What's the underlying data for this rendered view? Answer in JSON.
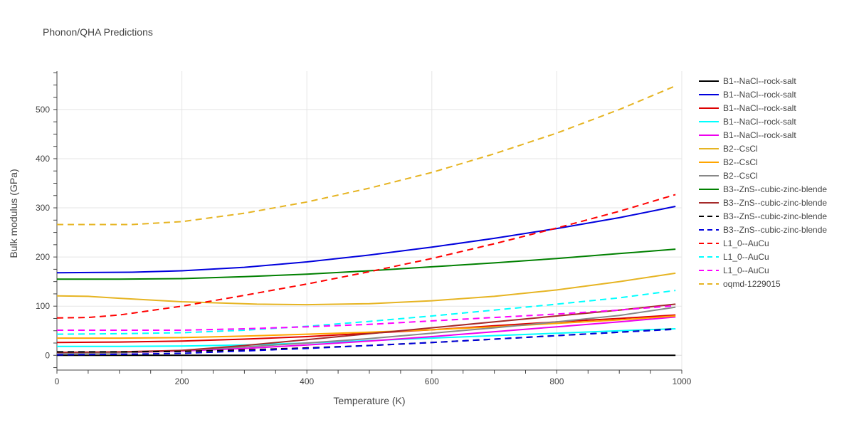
{
  "chart_data": {
    "type": "line",
    "title": "Phonon/QHA Predictions",
    "xlabel": "Temperature (K)",
    "ylabel": "Bulk modulus (GPa)",
    "xlim": [
      0,
      1000
    ],
    "ylim": [
      -30,
      578
    ],
    "xticks": [
      0,
      200,
      400,
      600,
      800,
      1000
    ],
    "yticks": [
      0,
      100,
      200,
      300,
      400,
      500
    ],
    "grid": true,
    "legend_position": "right",
    "series": [
      {
        "name": "B1--NaCl--rock-salt",
        "color": "#000000",
        "dash": "solid",
        "x": [
          0,
          200,
          400,
          600,
          800,
          990
        ],
        "y": [
          0,
          0,
          0,
          0,
          0,
          0
        ]
      },
      {
        "name": "B1--NaCl--rock-salt",
        "color": "#0000dd",
        "dash": "solid",
        "x": [
          0,
          120,
          200,
          300,
          400,
          500,
          600,
          700,
          800,
          900,
          990
        ],
        "y": [
          168,
          169,
          172,
          179,
          190,
          204,
          220,
          238,
          258,
          280,
          303
        ]
      },
      {
        "name": "B1--NaCl--rock-salt",
        "color": "#dd0000",
        "dash": "solid",
        "x": [
          0,
          100,
          200,
          300,
          400,
          500,
          600,
          700,
          800,
          900,
          990
        ],
        "y": [
          26,
          27,
          29,
          33,
          38,
          45,
          52,
          60,
          68,
          75,
          82
        ]
      },
      {
        "name": "B1--NaCl--rock-salt",
        "color": "#00ffff",
        "dash": "solid",
        "x": [
          0,
          100,
          200,
          300,
          400,
          500,
          600,
          700,
          800,
          900,
          990
        ],
        "y": [
          18,
          18,
          19,
          21,
          25,
          30,
          35,
          40,
          45,
          50,
          54
        ]
      },
      {
        "name": "B1--NaCl--rock-salt",
        "color": "#ee00ee",
        "dash": "solid",
        "x": [
          0,
          100,
          200,
          300,
          400,
          500,
          600,
          700,
          800,
          900,
          990
        ],
        "y": [
          3,
          5,
          9,
          14,
          21,
          29,
          38,
          48,
          58,
          68,
          78
        ]
      },
      {
        "name": "B2--CsCl",
        "color": "#e6b422",
        "dash": "solid",
        "x": [
          0,
          50,
          100,
          200,
          320,
          400,
          500,
          600,
          700,
          800,
          900,
          990
        ],
        "y": [
          121,
          120,
          116,
          109,
          104,
          103,
          105,
          111,
          120,
          133,
          150,
          167
        ]
      },
      {
        "name": "B2--CsCl",
        "color": "#ffa500",
        "dash": "solid",
        "x": [
          0,
          100,
          200,
          300,
          400,
          500,
          600,
          700,
          800,
          900,
          990
        ],
        "y": [
          35,
          35,
          36,
          39,
          43,
          47,
          52,
          58,
          65,
          72,
          80
        ]
      },
      {
        "name": "B2--CsCl",
        "color": "#888888",
        "dash": "solid",
        "x": [
          0,
          100,
          200,
          300,
          400,
          500,
          600,
          700,
          800,
          900,
          990
        ],
        "y": [
          3,
          5,
          10,
          17,
          25,
          34,
          45,
          56,
          68,
          81,
          98
        ]
      },
      {
        "name": "B3--ZnS--cubic-zinc-blende",
        "color": "#008000",
        "dash": "solid",
        "x": [
          0,
          100,
          200,
          300,
          400,
          500,
          600,
          700,
          800,
          900,
          990
        ],
        "y": [
          155,
          155,
          156,
          160,
          165,
          172,
          180,
          188,
          197,
          207,
          216
        ]
      },
      {
        "name": "B3--ZnS--cubic-zinc-blende",
        "color": "#a52a2a",
        "dash": "solid",
        "x": [
          0,
          100,
          200,
          300,
          400,
          500,
          600,
          700,
          800,
          900,
          990
        ],
        "y": [
          6,
          7,
          10,
          20,
          32,
          44,
          56,
          68,
          80,
          92,
          104
        ]
      },
      {
        "name": "B3--ZnS--cubic-zinc-blende",
        "color": "#000000",
        "dash": "dash",
        "x": [
          0,
          100,
          200,
          300,
          400,
          500,
          600,
          700,
          800,
          900,
          990
        ],
        "y": [
          7,
          7,
          8,
          11,
          15,
          20,
          26,
          33,
          40,
          47,
          54
        ]
      },
      {
        "name": "B3--ZnS--cubic-zinc-blende",
        "color": "#0000dd",
        "dash": "dash",
        "x": [
          0,
          100,
          200,
          300,
          400,
          500,
          600,
          700,
          800,
          900,
          990
        ],
        "y": [
          1,
          2,
          4,
          9,
          14,
          20,
          26,
          33,
          40,
          47,
          53
        ]
      },
      {
        "name": "L1_0--AuCu",
        "color": "#ff0000",
        "dash": "dash",
        "x": [
          0,
          50,
          100,
          200,
          300,
          400,
          500,
          600,
          700,
          800,
          900,
          990
        ],
        "y": [
          76,
          77,
          82,
          100,
          122,
          145,
          170,
          197,
          227,
          259,
          293,
          327
        ]
      },
      {
        "name": "L1_0--AuCu",
        "color": "#00ffff",
        "dash": "dash",
        "x": [
          0,
          100,
          200,
          300,
          400,
          500,
          600,
          700,
          800,
          900,
          990
        ],
        "y": [
          43,
          44,
          46,
          51,
          59,
          69,
          80,
          92,
          104,
          117,
          132
        ]
      },
      {
        "name": "L1_0--AuCu",
        "color": "#ff00ff",
        "dash": "dash",
        "x": [
          0,
          100,
          200,
          300,
          400,
          500,
          600,
          700,
          800,
          900,
          990
        ],
        "y": [
          51,
          51,
          51,
          54,
          58,
          63,
          70,
          77,
          84,
          92,
          101
        ]
      },
      {
        "name": "oqmd-1229015",
        "color": "#e6b422",
        "dash": "dash",
        "x": [
          0,
          120,
          200,
          300,
          400,
          500,
          600,
          700,
          800,
          900,
          990
        ],
        "y": [
          266,
          266,
          272,
          289,
          312,
          340,
          372,
          410,
          452,
          500,
          548
        ]
      }
    ]
  }
}
